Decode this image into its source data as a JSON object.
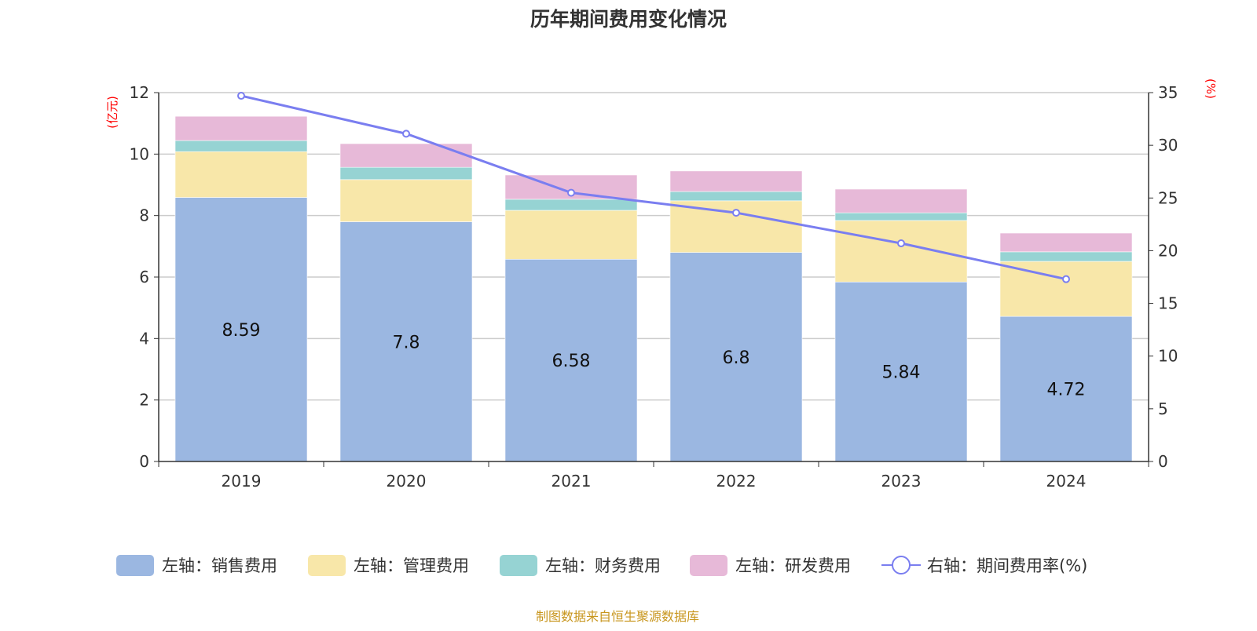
{
  "chart_data": {
    "type": "bar+line",
    "title": "历年期间费用变化情况",
    "categories": [
      "2019",
      "2020",
      "2021",
      "2022",
      "2023",
      "2024"
    ],
    "left_axis": {
      "unit_label": "(亿元)",
      "range": [
        0,
        12
      ],
      "ticks": [
        "0",
        "2",
        "4",
        "6",
        "8",
        "10",
        "12"
      ]
    },
    "right_axis": {
      "unit_label": "(%)",
      "range": [
        0,
        35
      ],
      "ticks": [
        "0",
        "5",
        "10",
        "15",
        "20",
        "25",
        "30",
        "35"
      ]
    },
    "grid": true,
    "legend_position": "bottom",
    "series": [
      {
        "name": "左轴：销售费用",
        "type": "bar",
        "axis": "left",
        "color": "#9bb7e1",
        "values": [
          8.59,
          7.8,
          6.58,
          6.8,
          5.84,
          4.72
        ],
        "labels": [
          "8.59",
          "7.8",
          "6.58",
          "6.8",
          "5.84",
          "4.72"
        ]
      },
      {
        "name": "左轴：管理费用",
        "type": "bar",
        "axis": "left",
        "color": "#f8e7a9",
        "values": [
          1.49,
          1.37,
          1.59,
          1.68,
          2.0,
          1.79
        ]
      },
      {
        "name": "左轴：财务费用",
        "type": "bar",
        "axis": "left",
        "color": "#96d3d3",
        "values": [
          0.36,
          0.4,
          0.36,
          0.3,
          0.25,
          0.31
        ]
      },
      {
        "name": "左轴：研发费用",
        "type": "bar",
        "axis": "left",
        "color": "#e7b9d8",
        "values": [
          0.79,
          0.77,
          0.79,
          0.67,
          0.77,
          0.61
        ]
      },
      {
        "name": "右轴：期间费用率(%)",
        "type": "line",
        "axis": "right",
        "color": "#7a7ef0",
        "values": [
          34.7,
          31.1,
          25.5,
          23.6,
          20.7,
          17.3
        ]
      }
    ]
  },
  "source": "制图数据来自恒生聚源数据库",
  "colors": {
    "axis_label": "#ff0000",
    "source": "#c8961e",
    "grid": "#cccccc"
  }
}
